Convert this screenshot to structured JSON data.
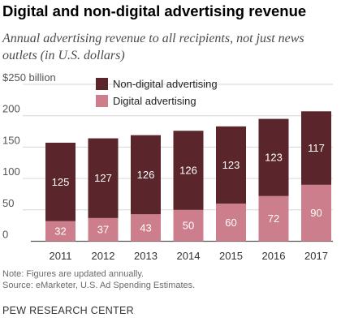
{
  "title": "Digital and non-digital advertising revenue",
  "subtitle": "Annual advertising revenue to all recipients, not just news outlets (in U.S. dollars)",
  "chart_data": {
    "type": "bar",
    "stacked": true,
    "categories": [
      "2011",
      "2012",
      "2013",
      "2014",
      "2015",
      "2016",
      "2017"
    ],
    "series": [
      {
        "name": "Digital advertising",
        "values": [
          32,
          37,
          43,
          50,
          60,
          72,
          90
        ],
        "color": "#cd7e8c"
      },
      {
        "name": "Non-digital advertising",
        "values": [
          125,
          127,
          126,
          126,
          123,
          123,
          117
        ],
        "color": "#5b262b"
      }
    ],
    "yticks": [
      "0",
      "50",
      "100",
      "150",
      "200",
      "$250 billion"
    ],
    "ylim": [
      0,
      250
    ],
    "grid": true,
    "legend": "top-left"
  },
  "note": "Note: Figures are updated annually.",
  "source": "Source: eMarketer, U.S. Ad Spending Estimates.",
  "brand": "PEW RESEARCH CENTER"
}
